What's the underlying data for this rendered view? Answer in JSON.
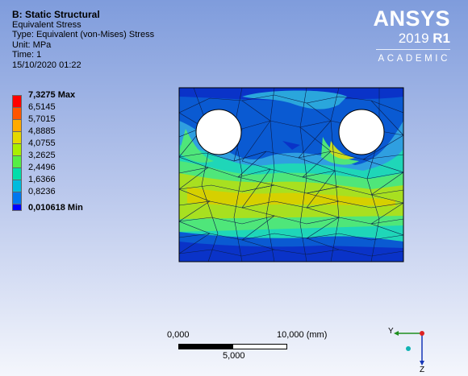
{
  "header": {
    "title": "B: Static Structural",
    "result": "Equivalent Stress",
    "type": "Type: Equivalent (von-Mises) Stress",
    "unit": "Unit: MPa",
    "time": "Time: 1",
    "date": "15/10/2020 01:22"
  },
  "brand": {
    "name": "ANSYS",
    "version_year": "2019",
    "version_release": "R1",
    "edition": "ACADEMIC"
  },
  "legend": {
    "labels": [
      "7,3275 Max",
      "6,5145",
      "5,7015",
      "4,8885",
      "4,0755",
      "3,2625",
      "2,4496",
      "1,6366",
      "0,8236",
      "0,010618 Min"
    ],
    "colors": [
      "#ff0000",
      "#ff5500",
      "#ffaa00",
      "#e5d800",
      "#aaee00",
      "#55ee44",
      "#00ddaa",
      "#00bbdd",
      "#0077ee",
      "#0000ff"
    ]
  },
  "scale_bar": {
    "left_label": "0,000",
    "right_label": "10,000 (mm)",
    "mid_label": "5,000"
  },
  "triad": {
    "y_label": "Y",
    "z_label": "Z"
  }
}
